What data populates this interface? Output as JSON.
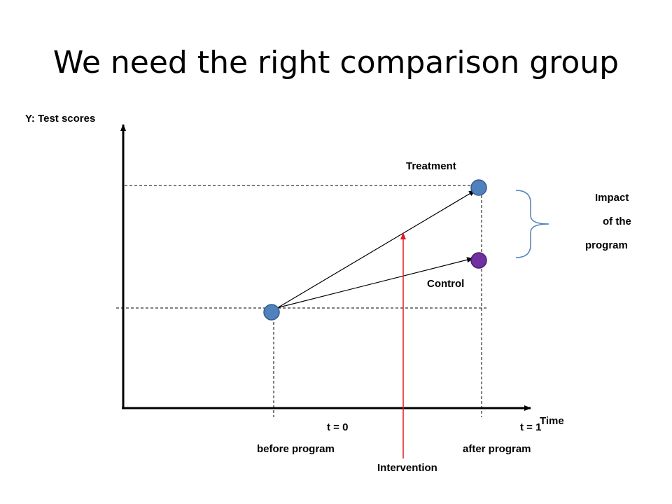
{
  "slide": {
    "title": "We need the right comparison group"
  },
  "labels": {
    "y_axis": "Y: Test scores",
    "x_axis": "Time",
    "treatment": "Treatment",
    "control": "Control",
    "impact_line1": "Impact",
    "impact_line2": "of the",
    "impact_line3": "program",
    "t0": "t = 0",
    "t0_sub": "before program",
    "t1": "t = 1",
    "t1_sub": "after program",
    "intervention": "Intervention"
  },
  "colors": {
    "point_blue": "#4f81bd",
    "point_purple": "#7030a0",
    "intervention_arrow": "#e31b1b",
    "axis": "#000000"
  }
}
